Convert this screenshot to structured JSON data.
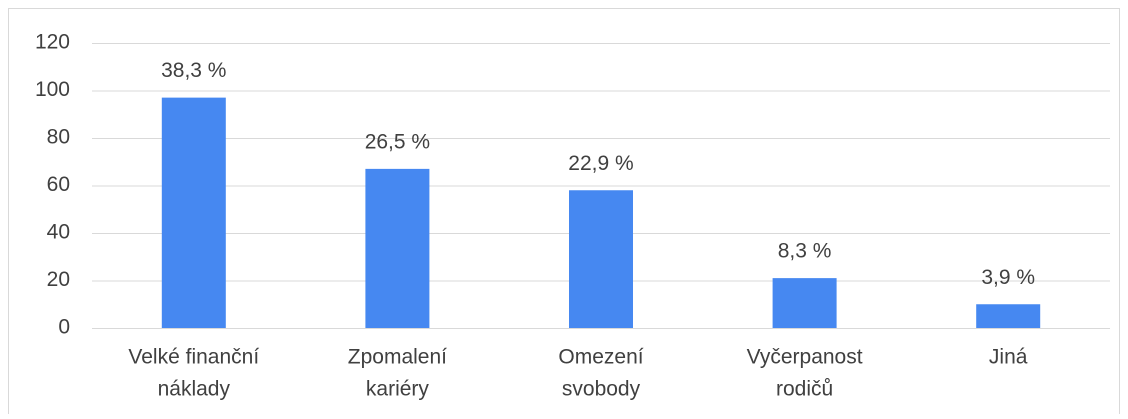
{
  "chart_data": {
    "type": "bar",
    "categories": [
      [
        "Velké finanční",
        "náklady"
      ],
      [
        "Zpomalení",
        "kariéry"
      ],
      [
        "Omezení",
        "svobody"
      ],
      [
        "Vyčerpanost",
        "rodičů"
      ],
      [
        "Jiná"
      ]
    ],
    "values": [
      97,
      67,
      58,
      21,
      10
    ],
    "annotations": [
      "38,3 %",
      "26,5 %",
      "22,9 %",
      "8,3 %",
      "3,9 %"
    ],
    "color": "#4688f1",
    "ylim": [
      0,
      120
    ],
    "yticks": [
      0,
      20,
      40,
      60,
      80,
      100,
      120
    ],
    "grid": true
  }
}
